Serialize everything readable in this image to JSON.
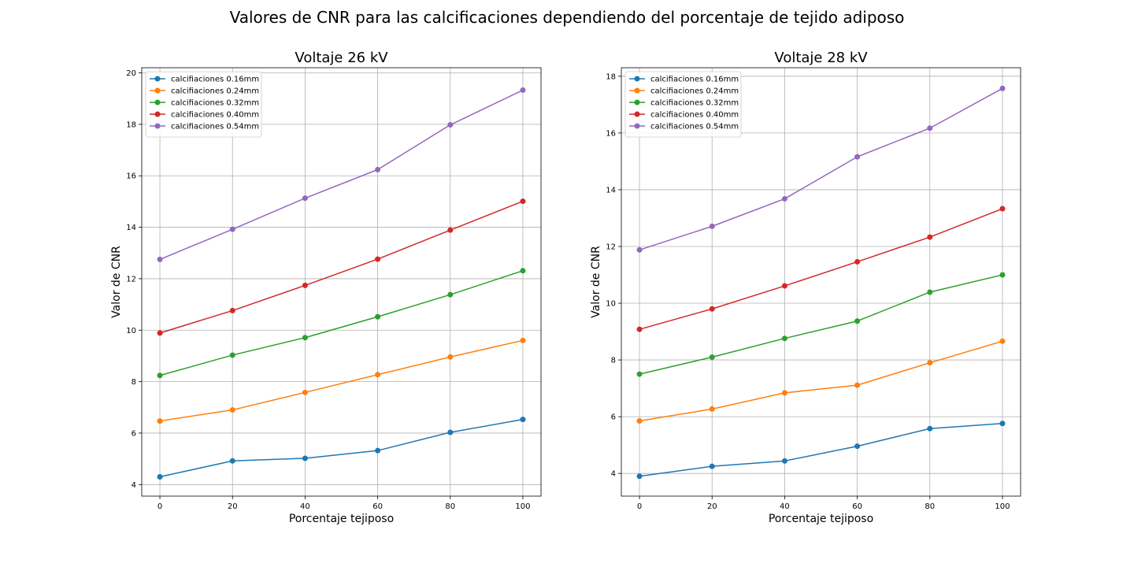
{
  "figure": {
    "suptitle": "Valores de CNR para las calcificaciones dependiendo del porcentaje de tejido adiposo"
  },
  "chart_data": [
    {
      "type": "line",
      "title": "Voltaje 26 kV",
      "xlabel": "Porcentaje tejiposo",
      "ylabel": "Valor de CNR",
      "x": [
        0,
        20,
        40,
        60,
        80,
        100
      ],
      "xticks": [
        0,
        20,
        40,
        60,
        80,
        100
      ],
      "yticks": [
        4,
        6,
        8,
        10,
        12,
        14,
        16,
        18,
        20
      ],
      "xlim": [
        -5,
        105
      ],
      "ylim": [
        3.55,
        20.2
      ],
      "grid": true,
      "legend_position": "top-left",
      "series": [
        {
          "name": "calcifiaciones 0.16mm",
          "color": "#1f77b4",
          "values": [
            4.3,
            4.92,
            5.02,
            5.32,
            6.03,
            6.53
          ]
        },
        {
          "name": "calcifiaciones 0.24mm",
          "color": "#ff7f0e",
          "values": [
            6.47,
            6.9,
            7.58,
            8.27,
            8.96,
            9.6
          ]
        },
        {
          "name": "calcifiaciones 0.32mm",
          "color": "#2ca02c",
          "values": [
            8.24,
            9.03,
            9.71,
            10.52,
            11.38,
            12.31
          ]
        },
        {
          "name": "calcifiaciones 0.40mm",
          "color": "#d62728",
          "values": [
            9.89,
            10.76,
            11.74,
            12.76,
            13.89,
            15.01
          ]
        },
        {
          "name": "calcifiaciones 0.54mm",
          "color": "#9467bd",
          "values": [
            12.75,
            13.92,
            15.13,
            16.24,
            17.98,
            19.33
          ]
        }
      ]
    },
    {
      "type": "line",
      "title": "Voltaje 28 kV",
      "xlabel": "Porcentaje tejiposo",
      "ylabel": "Valor de CNR",
      "x": [
        0,
        20,
        40,
        60,
        80,
        100
      ],
      "xticks": [
        0,
        20,
        40,
        60,
        80,
        100
      ],
      "yticks": [
        4,
        6,
        8,
        10,
        12,
        14,
        16,
        18
      ],
      "xlim": [
        -5,
        105
      ],
      "ylim": [
        3.2,
        18.3
      ],
      "grid": true,
      "legend_position": "top-left",
      "series": [
        {
          "name": "calcifiaciones 0.16mm",
          "color": "#1f77b4",
          "values": [
            3.9,
            4.25,
            4.44,
            4.96,
            5.58,
            5.76
          ]
        },
        {
          "name": "calcifiaciones 0.24mm",
          "color": "#ff7f0e",
          "values": [
            5.85,
            6.27,
            6.84,
            7.11,
            7.9,
            8.66
          ]
        },
        {
          "name": "calcifiaciones 0.32mm",
          "color": "#2ca02c",
          "values": [
            7.5,
            8.1,
            8.76,
            9.37,
            10.39,
            11.0
          ]
        },
        {
          "name": "calcifiaciones 0.40mm",
          "color": "#d62728",
          "values": [
            9.08,
            9.8,
            10.61,
            11.46,
            12.33,
            13.33
          ]
        },
        {
          "name": "calcifiaciones 0.54mm",
          "color": "#9467bd",
          "values": [
            11.88,
            12.71,
            13.68,
            15.16,
            16.17,
            17.57
          ]
        }
      ]
    }
  ]
}
